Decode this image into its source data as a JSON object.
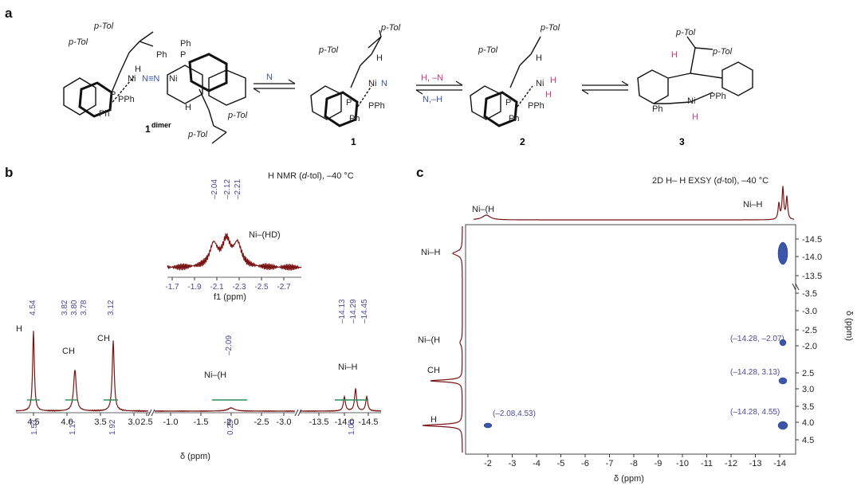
{
  "panels": {
    "a": "a",
    "b": "b",
    "c": "c"
  },
  "scheme": {
    "compounds": [
      "1",
      "1",
      "2",
      "3"
    ],
    "dimer_label": "dimer",
    "p_tol": "p-Tol",
    "ni": "Ni",
    "ph2": "Ph",
    "pph2": "PPh",
    "p": "P",
    "h": "H",
    "n2_ligand": "N",
    "ni_n_n_ni": "N≡N",
    "arrow1_top": "N",
    "arrow2_top": "H, –N",
    "arrow2_bottom": "N,–H"
  },
  "panel_b": {
    "title_prefix": "H NMR (",
    "title_solvent": "d",
    "title_suffix": "-tol), –40 °C",
    "x_axis_label": "δ (ppm)",
    "x_ticks_1": [
      "4.5",
      "4.0",
      "3.5",
      "3.0",
      "2.5"
    ],
    "x_ticks_2": [
      "-1.0",
      "-1.5",
      "-2.0",
      "-2.5",
      "-3.0"
    ],
    "x_ticks_3": [
      "-13.5",
      "-14.0",
      "-14.5"
    ],
    "peak_labels": {
      "h2": "H",
      "ch": "CH",
      "ch2": "CH",
      "ni_h2": "Ni–(H",
      "ni_h": "Ni–H"
    },
    "shift_labels": [
      "4.54",
      "3.82",
      "3.80",
      "3.78",
      "3.12",
      "–2.09",
      "–14.13",
      "–14.29",
      "–14.45"
    ],
    "integrals": [
      "1.53",
      "1.17",
      "1.92",
      "0.29",
      "1.00"
    ],
    "inset": {
      "label": "Ni–(HD)",
      "shift_labels": [
        "–2.04",
        "–2.12",
        "–2.21"
      ],
      "x_ticks": [
        "-1.7",
        "-1.9",
        "-2.1",
        "-2.3",
        "-2.5",
        "-2.7"
      ],
      "x_axis_label": "f1 (ppm)"
    }
  },
  "panel_c": {
    "title_prefix": "2D ",
    "title_mid": "H– ",
    "title_mid2": "H EXSY (",
    "title_solvent": "d",
    "title_suffix": "-tol), –40 °C",
    "x_axis_label": "δ (ppm)",
    "y_axis_label": "δ (ppm)",
    "x_ticks": [
      "-2",
      "-3",
      "-4",
      "-5",
      "-6",
      "-7",
      "-8",
      "-9",
      "-10",
      "-11",
      "-12",
      "-13",
      "-14"
    ],
    "y_ticks_top": [
      "-14.5",
      "-14.0",
      "-13.5"
    ],
    "y_ticks_bottom": [
      "-3.5",
      "-3.0",
      "-2.5",
      "-2.0",
      "2.5",
      "3.0",
      "3.5",
      "4.0",
      "4.5"
    ],
    "top_labels": [
      "Ni–(H",
      "Ni–H"
    ],
    "left_labels": [
      "Ni–H",
      "Ni–(H",
      "CH",
      "H"
    ],
    "cross_peaks": [
      "(–2.08,4.53)",
      "(–14.28, –2.07)",
      "(–14.28, 3.13)",
      "(–14.28, 4.55)"
    ]
  },
  "colors": {
    "spectrum": "#7a1515",
    "shift_label": "#4a4a9c",
    "integral": "#2e8b57",
    "contour": "#3b55a8",
    "accent_h": "#d6337a"
  }
}
